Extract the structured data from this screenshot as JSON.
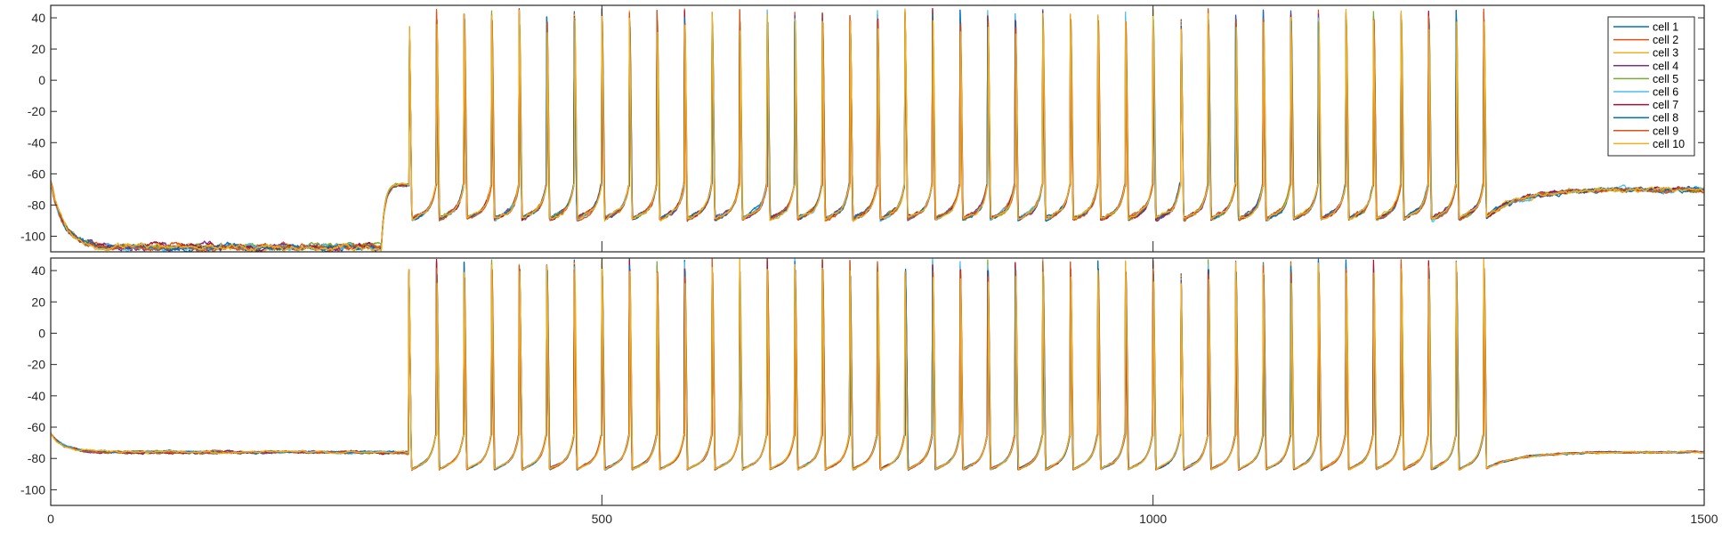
{
  "chart_data": [
    {
      "type": "line",
      "panel": "top",
      "xlim": [
        0,
        1500
      ],
      "ylim": [
        -110,
        48
      ],
      "xticks": [
        500,
        1000
      ],
      "yticks": [
        40,
        20,
        0,
        -20,
        -40,
        -60,
        -80,
        -100
      ],
      "ytick_labels": [
        "40",
        "20",
        "0",
        "-20",
        "-40",
        "-60",
        "-80",
        "-100"
      ],
      "legend_position": "top-right",
      "series": [
        {
          "name": "cell 1",
          "color": "#0072BD"
        },
        {
          "name": "cell 2",
          "color": "#D95319"
        },
        {
          "name": "cell 3",
          "color": "#EDB120"
        },
        {
          "name": "cell 4",
          "color": "#7E2F8E"
        },
        {
          "name": "cell 5",
          "color": "#77AC30"
        },
        {
          "name": "cell 6",
          "color": "#4DBEEE"
        },
        {
          "name": "cell 7",
          "color": "#A2142F"
        },
        {
          "name": "cell 8",
          "color": "#0072BD"
        },
        {
          "name": "cell 9",
          "color": "#D95319"
        },
        {
          "name": "cell 10",
          "color": "#EDB120"
        }
      ],
      "trace": {
        "start_value": -65,
        "rest_before_stimulus": -107,
        "stimulus_on": 300,
        "plateau_before_spikes": -67,
        "first_spike": 325,
        "last_spike": 1300,
        "spike_count": 40,
        "spike_peak": 46,
        "after_spike_trough": -89,
        "rest_after_stimulus": -70
      }
    },
    {
      "type": "line",
      "panel": "bottom",
      "xlim": [
        0,
        1500
      ],
      "ylim": [
        -110,
        48
      ],
      "xticks": [
        0,
        500,
        1000,
        1500
      ],
      "xtick_labels": [
        "0",
        "500",
        "1000",
        "1500"
      ],
      "yticks": [
        40,
        20,
        0,
        -20,
        -40,
        -60,
        -80,
        -100
      ],
      "ytick_labels": [
        "40",
        "20",
        "0",
        "-20",
        "-40",
        "-60",
        "-80",
        "-100"
      ],
      "trace": {
        "start_value": -64,
        "rest_before_stimulus": -76,
        "stimulus_on": 325,
        "first_spike": 325,
        "last_spike": 1300,
        "spike_count": 40,
        "spike_peak": 48,
        "after_spike_trough": -87,
        "rest_after_stimulus": -76
      }
    }
  ]
}
